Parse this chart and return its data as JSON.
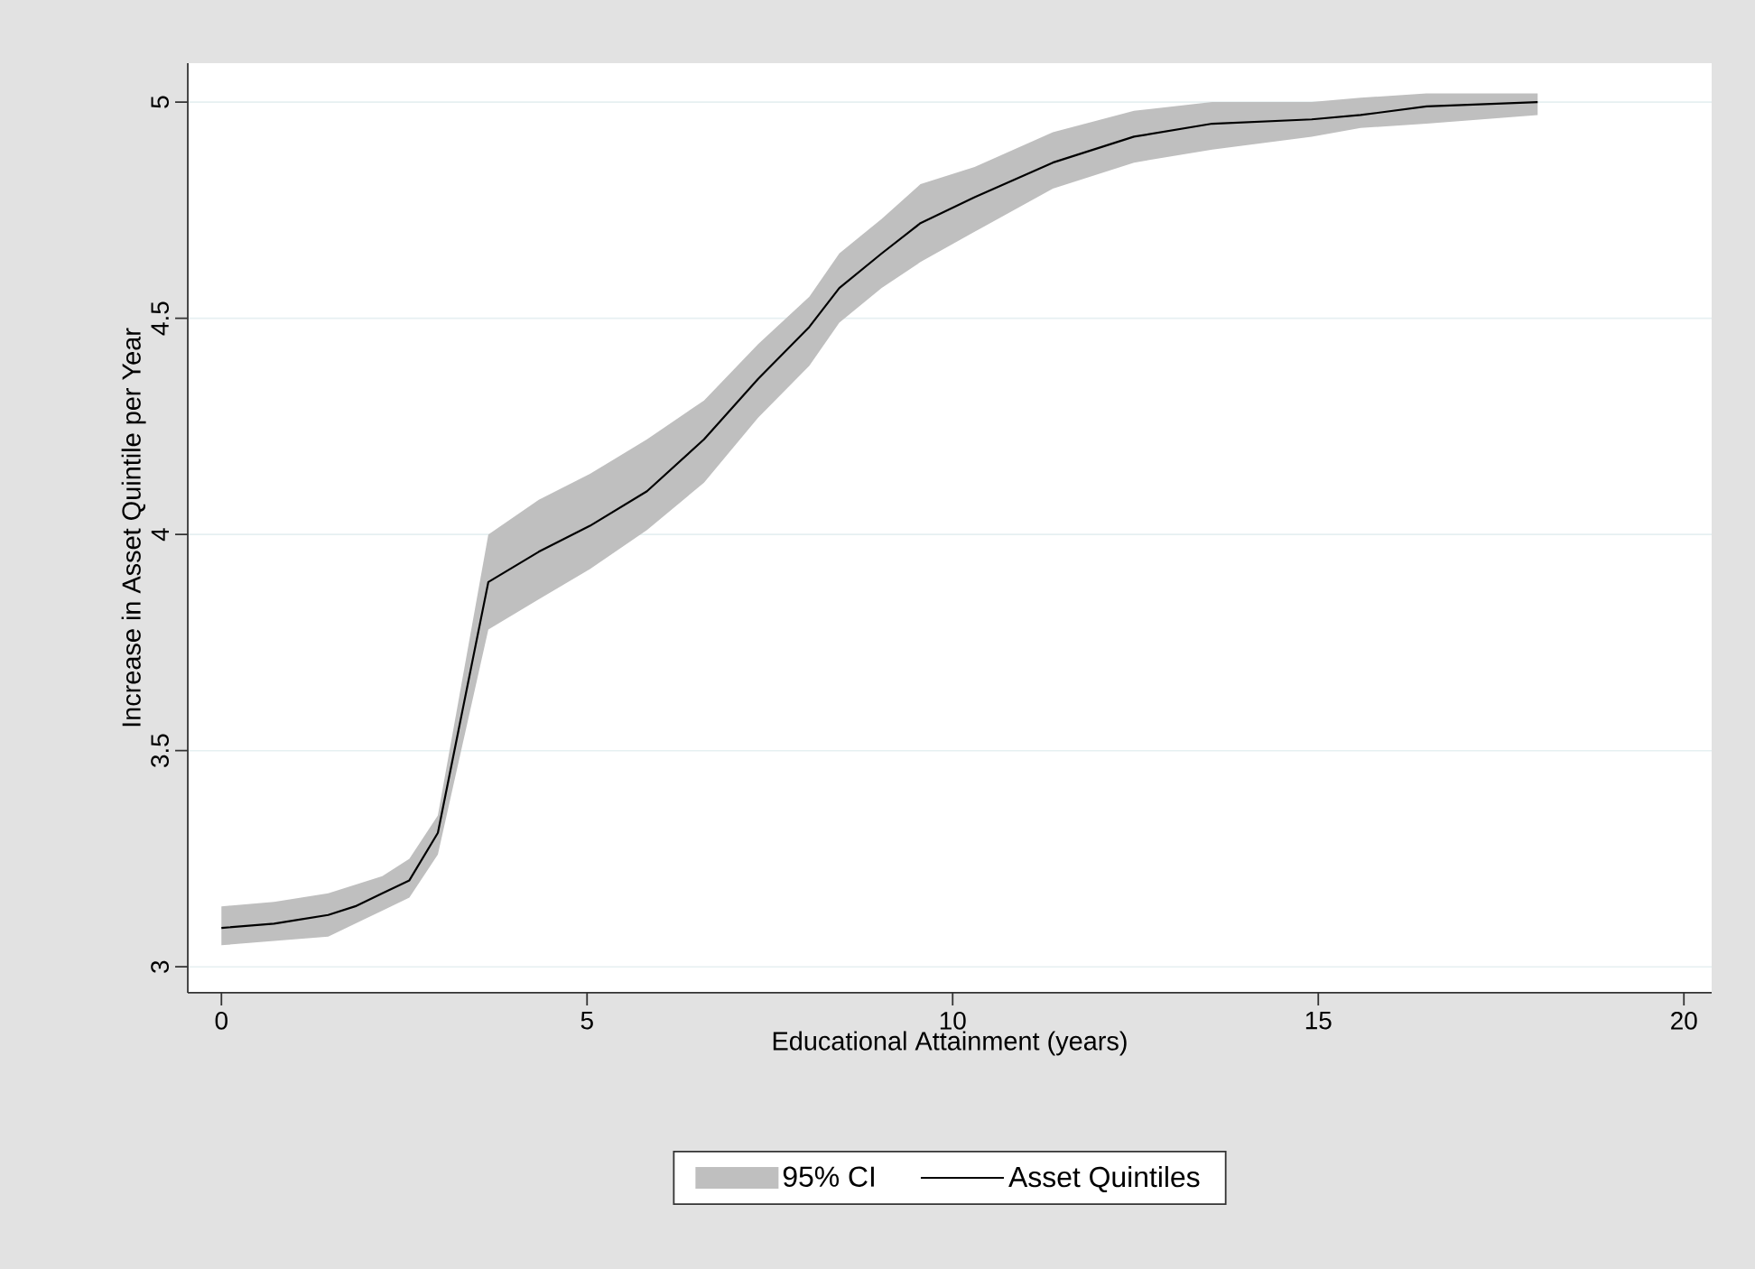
{
  "chart_data": {
    "type": "line",
    "xlabel": "Educational Attainment (years)",
    "ylabel": "Increase in Asset Quintile per Year",
    "xlim": [
      -0.46,
      20.38
    ],
    "ylim": [
      2.94,
      5.09
    ],
    "xticks": [
      0,
      5,
      10,
      15,
      20
    ],
    "yticks": [
      3,
      3.5,
      4,
      4.5,
      5
    ],
    "grid": "y",
    "legend": "bottom",
    "annotations": [
      "95% CI"
    ],
    "series": [
      {
        "name": "Asset Quintiles",
        "color": "#000000",
        "x": [
          0,
          0.72,
          1.46,
          1.83,
          2.2,
          2.57,
          2.96,
          3.65,
          4.34,
          5.04,
          5.82,
          6.6,
          7.34,
          8.04,
          8.45,
          9.03,
          9.56,
          10.3,
          11.37,
          12.48,
          13.55,
          14.91,
          15.58,
          16.48,
          18.0
        ],
        "values": [
          3.09,
          3.1,
          3.12,
          3.14,
          3.17,
          3.2,
          3.31,
          3.89,
          3.96,
          4.02,
          4.1,
          4.22,
          4.36,
          4.48,
          4.57,
          4.65,
          4.72,
          4.78,
          4.86,
          4.92,
          4.95,
          4.96,
          4.97,
          4.99,
          5.0
        ],
        "lower": [
          3.05,
          3.06,
          3.07,
          3.1,
          3.13,
          3.16,
          3.26,
          3.78,
          3.85,
          3.92,
          4.01,
          4.12,
          4.27,
          4.39,
          4.49,
          4.57,
          4.63,
          4.7,
          4.8,
          4.86,
          4.89,
          4.92,
          4.94,
          4.95,
          4.97
        ],
        "upper": [
          3.14,
          3.15,
          3.17,
          3.19,
          3.21,
          3.25,
          3.35,
          4.0,
          4.08,
          4.14,
          4.22,
          4.31,
          4.44,
          4.55,
          4.65,
          4.73,
          4.81,
          4.85,
          4.93,
          4.98,
          5.0,
          5.0,
          5.01,
          5.02,
          5.02
        ]
      }
    ]
  }
}
